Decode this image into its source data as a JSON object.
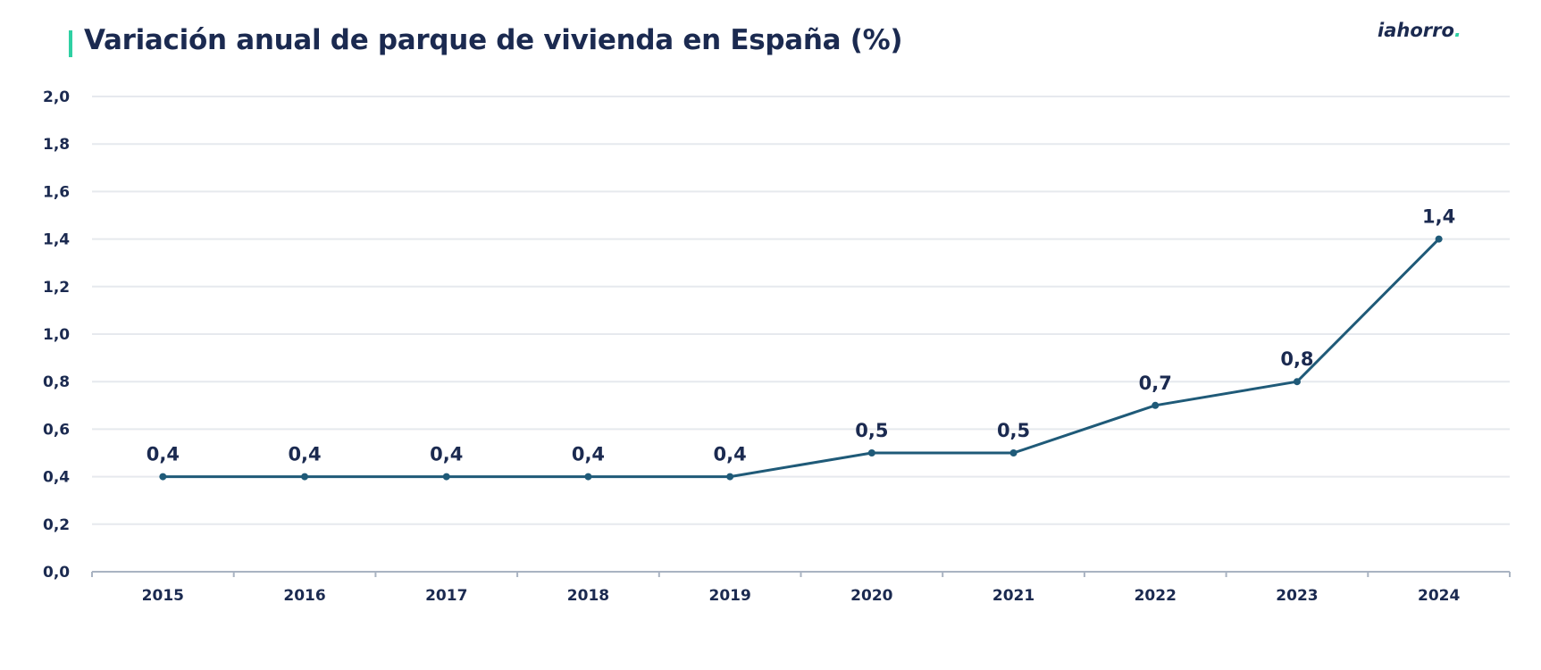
{
  "header": {
    "title": "Variación anual de parque de vivienda en España (%)",
    "logo_text": "iahorro",
    "logo_dot": "."
  },
  "colors": {
    "accent": "#2fd0a3",
    "title": "#1b2a50",
    "line": "#1f5a78",
    "grid": "#e6e9ee",
    "axis": "#a9b3c2"
  },
  "chart_data": {
    "type": "line",
    "title": "Variación anual de parque de vivienda en España (%)",
    "categories": [
      "2015",
      "2016",
      "2017",
      "2018",
      "2019",
      "2020",
      "2021",
      "2022",
      "2023",
      "2024"
    ],
    "series": [
      {
        "values": [
          0.4,
          0.4,
          0.4,
          0.4,
          0.4,
          0.5,
          0.5,
          0.7,
          0.8,
          1.4
        ],
        "data_labels": [
          "0,4",
          "0,4",
          "0,4",
          "0,4",
          "0,4",
          "0,5",
          "0,5",
          "0,7",
          "0,8",
          "1,4"
        ]
      }
    ],
    "ylim": [
      0,
      2.0
    ],
    "y_ticks": [
      0,
      0.2,
      0.4,
      0.6,
      0.8,
      1.0,
      1.2,
      1.4,
      1.6,
      1.8,
      2.0
    ],
    "y_tick_labels": [
      "0,0",
      "0,2",
      "0,4",
      "0,6",
      "0,8",
      "1,0",
      "1,2",
      "1,4",
      "1,6",
      "1,8",
      "2,0"
    ],
    "grid": true,
    "legend": "none"
  }
}
